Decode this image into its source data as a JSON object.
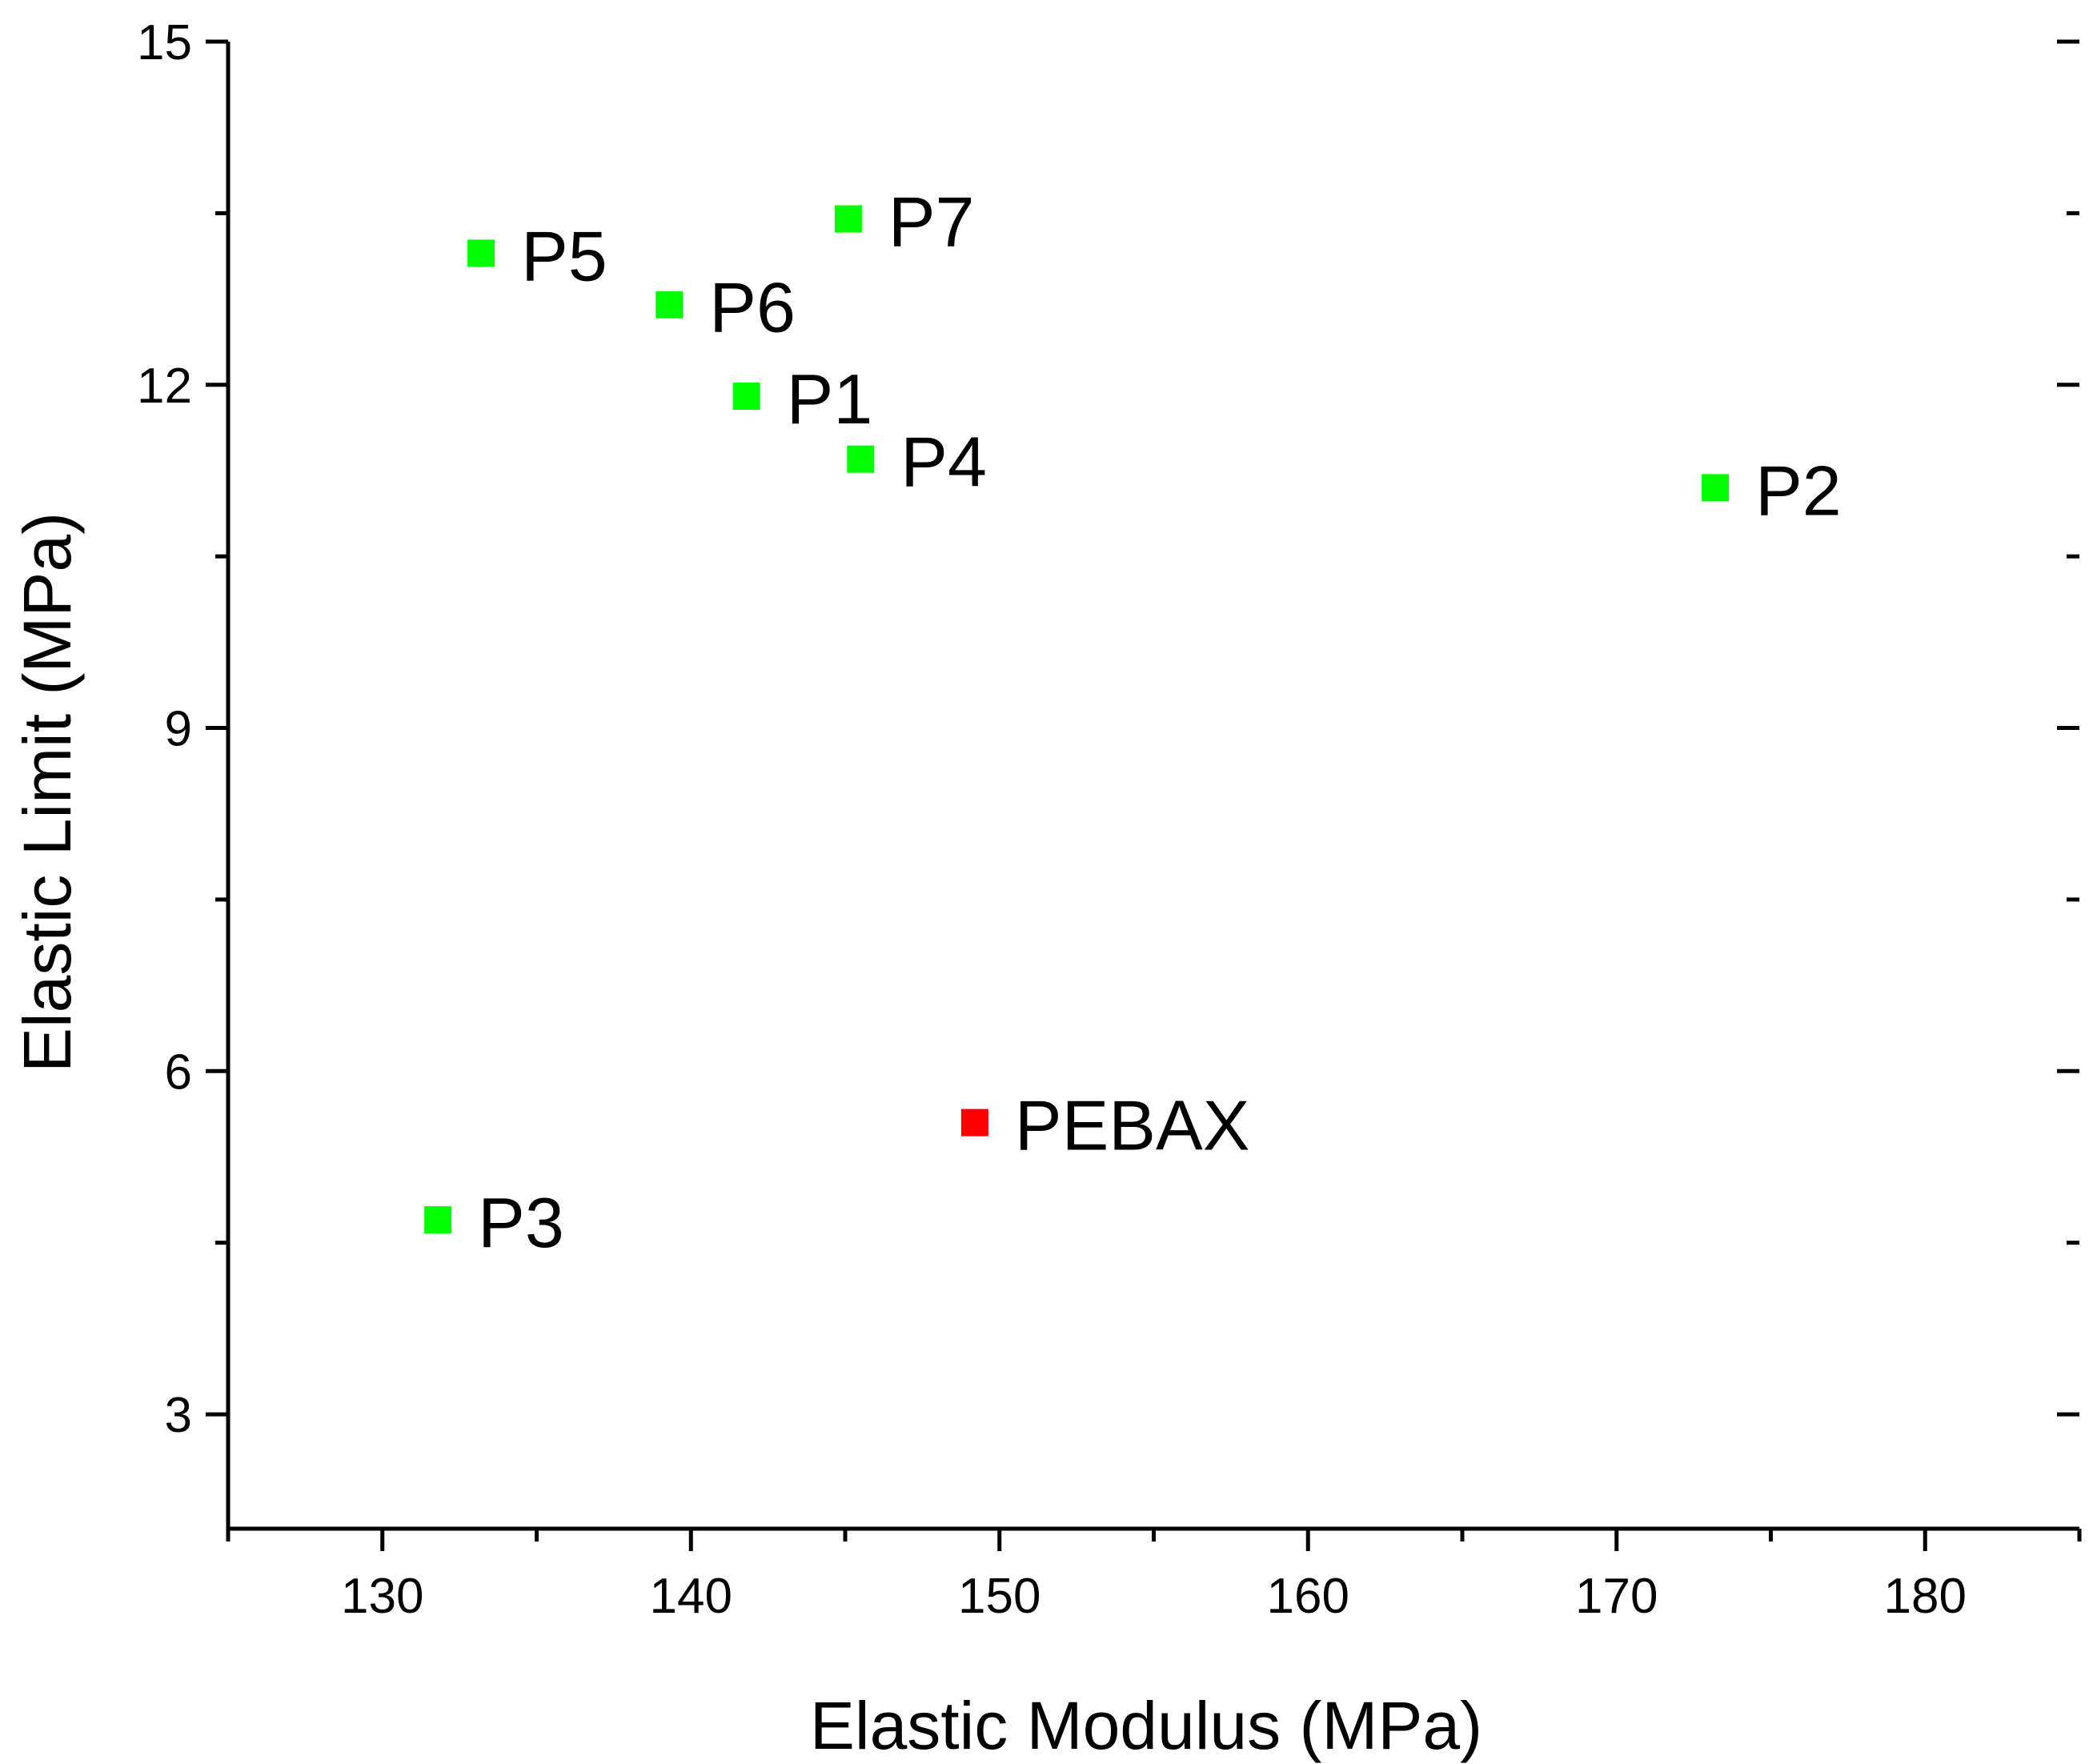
{
  "chart_data": {
    "type": "scatter",
    "title": "",
    "xlabel": "Elastic Modulus (MPa)",
    "ylabel": "Elastic Limit (MPa)",
    "xlim": [
      125,
      185
    ],
    "ylim": [
      2,
      15
    ],
    "x_ticks": [
      130,
      140,
      150,
      160,
      170,
      180
    ],
    "x_minor_ticks": [
      125,
      135,
      145,
      155,
      165,
      175,
      185
    ],
    "y_ticks": [
      3,
      6,
      9,
      12,
      15
    ],
    "y_minor_ticks": [
      4.5,
      7.5,
      10.5,
      13.5
    ],
    "grid": false,
    "points": [
      {
        "label": "P1",
        "x": 141.8,
        "y": 11.9,
        "color": "#00ff00"
      },
      {
        "label": "P2",
        "x": 173.2,
        "y": 11.1,
        "color": "#00ff00"
      },
      {
        "label": "P3",
        "x": 131.8,
        "y": 4.7,
        "color": "#00ff00"
      },
      {
        "label": "P4",
        "x": 145.5,
        "y": 11.35,
        "color": "#00ff00"
      },
      {
        "label": "P5",
        "x": 133.2,
        "y": 13.15,
        "color": "#00ff00"
      },
      {
        "label": "P6",
        "x": 139.3,
        "y": 12.7,
        "color": "#00ff00"
      },
      {
        "label": "P7",
        "x": 145.1,
        "y": 13.45,
        "color": "#00ff00"
      },
      {
        "label": "PEBAX",
        "x": 149.2,
        "y": 5.55,
        "color": "#ff0000"
      }
    ]
  }
}
